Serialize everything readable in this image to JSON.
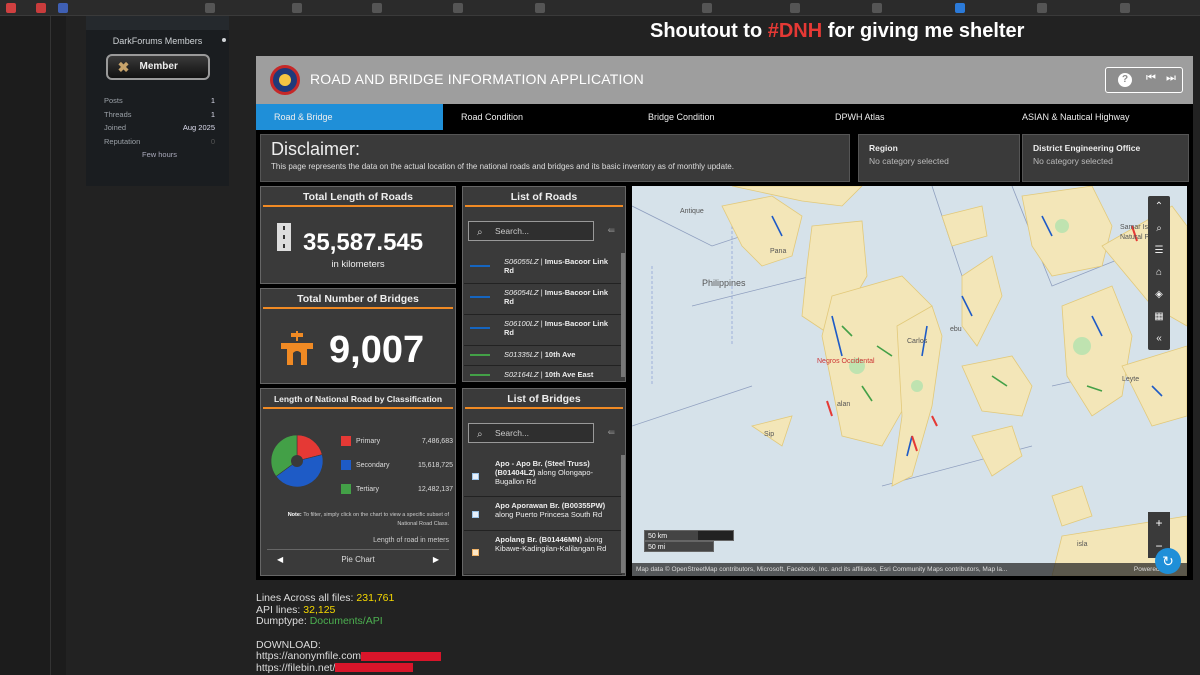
{
  "forum": {
    "group_label": "DarkForums Members",
    "rank_label": "Member",
    "stats": [
      {
        "label": "Posts",
        "value": "1"
      },
      {
        "label": "Threads",
        "value": "1"
      },
      {
        "label": "Joined",
        "value": "Aug 2025"
      },
      {
        "label": "Reputation",
        "value": "0"
      }
    ],
    "last_seen": "Few hours"
  },
  "headline": {
    "before": "Shoutout to ",
    "tag": "#DNH",
    "after": " for giving me shelter"
  },
  "app": {
    "title": "ROAD AND BRIDGE INFORMATION APPLICATION",
    "help_icon": "?",
    "tabs": [
      {
        "label": "Road & Bridge",
        "active": true
      },
      {
        "label": "Road Condition",
        "active": false
      },
      {
        "label": "Bridge Condition",
        "active": false
      },
      {
        "label": "DPWH Atlas",
        "active": false
      },
      {
        "label": "ASIAN & Nautical Highway",
        "active": false
      }
    ],
    "disclaimer": {
      "heading": "Disclaimer:",
      "text": "This page represents the data on the actual location of the national roads and bridges and its basic inventory as of monthly update."
    },
    "region": {
      "heading": "Region",
      "value": "No category selected"
    },
    "district": {
      "heading": "District Engineering Office",
      "value": "No category selected"
    },
    "total_roads": {
      "title": "Total Length of Roads",
      "value": "35,587.545",
      "unit": "in kilometers"
    },
    "total_bridges": {
      "title": "Total Number of Bridges",
      "value": "9,007"
    },
    "list_roads": {
      "title": "List of Roads",
      "search_placeholder": "Search...",
      "items": [
        {
          "code": "S06055LZ",
          "name": "Imus-Bacoor Link Rd",
          "color": "#1565c0"
        },
        {
          "code": "S06054LZ",
          "name": "Imus-Bacoor Link Rd",
          "color": "#1565c0"
        },
        {
          "code": "S06100LZ",
          "name": "Imus-Bacoor Link Rd",
          "color": "#1565c0"
        },
        {
          "code": "S01335LZ",
          "name": "10th Ave",
          "color": "#43a047"
        },
        {
          "code": "S02164LZ",
          "name": "10th Ave East",
          "color": "#43a047"
        }
      ]
    },
    "list_bridges": {
      "title": "List of Bridges",
      "search_placeholder": "Search...",
      "items": [
        {
          "name": "Apo - Apo Br. (Steel Truss) (B01404LZ)",
          "along": "along Olongapo-Bugallon Rd"
        },
        {
          "name": "Apo Aporawan Br. (B00355PW)",
          "along": "along Puerto Princesa South Rd"
        },
        {
          "name": "Apolang Br. (B01446MN)",
          "along": "along Kibawe-Kadingilan-Kalilangan Rd"
        }
      ]
    },
    "classification": {
      "title": "Length of National Road by Classification",
      "note_bold": "Note:",
      "note": "To filter, simply click on the chart to view a specific subset of National Road Class.",
      "unit_note": "Length of road in meters",
      "footer_label": "Pie Chart"
    },
    "map": {
      "scale_km": "50 km",
      "scale_mi": "50 mi",
      "attribution": "Map data © OpenStreetMap contributors, Microsoft, Facebook, Inc. and its affiliates, Esri Community Maps contributors, Map la...",
      "powered": "Powered b",
      "labels": {
        "antique": "Antique",
        "pana": "Pana",
        "philippines": "Philippines",
        "negros": "Negros Occidental",
        "carlos": "Carlos",
        "cebu": "ebu",
        "dalan": "alan",
        "sip": "Sip",
        "samar": "Samar Is",
        "natural_park": "Natural Pa",
        "leyte": "Leyte",
        "isla": "isla"
      }
    }
  },
  "chart_data": {
    "type": "pie",
    "title": "Length of National Road by Classification",
    "categories": [
      "Primary",
      "Secondary",
      "Tertiary"
    ],
    "values": [
      7486683,
      15618725,
      12482137
    ],
    "labels": [
      "7,486,683",
      "15,618,725",
      "12,482,137"
    ],
    "colors": [
      "#e53935",
      "#1e5bc6",
      "#43a047"
    ]
  },
  "dump": {
    "lines_label": "Lines Across all files:",
    "lines_value": "231,761",
    "api_label": "API lines:",
    "api_value": "32,125",
    "type_label": "Dumptype:",
    "type_value": "Documents/API",
    "download_label": "DOWNLOAD:",
    "link1_prefix": "https://anonymfile.com",
    "link2_prefix": "https://filebin.net/"
  },
  "colors": {
    "accent": "#1f8fd8",
    "orange_rule": "#f08a24",
    "panel": "#3a3a3a",
    "header": "#9e9e9e",
    "redaction": "#d8152a"
  }
}
